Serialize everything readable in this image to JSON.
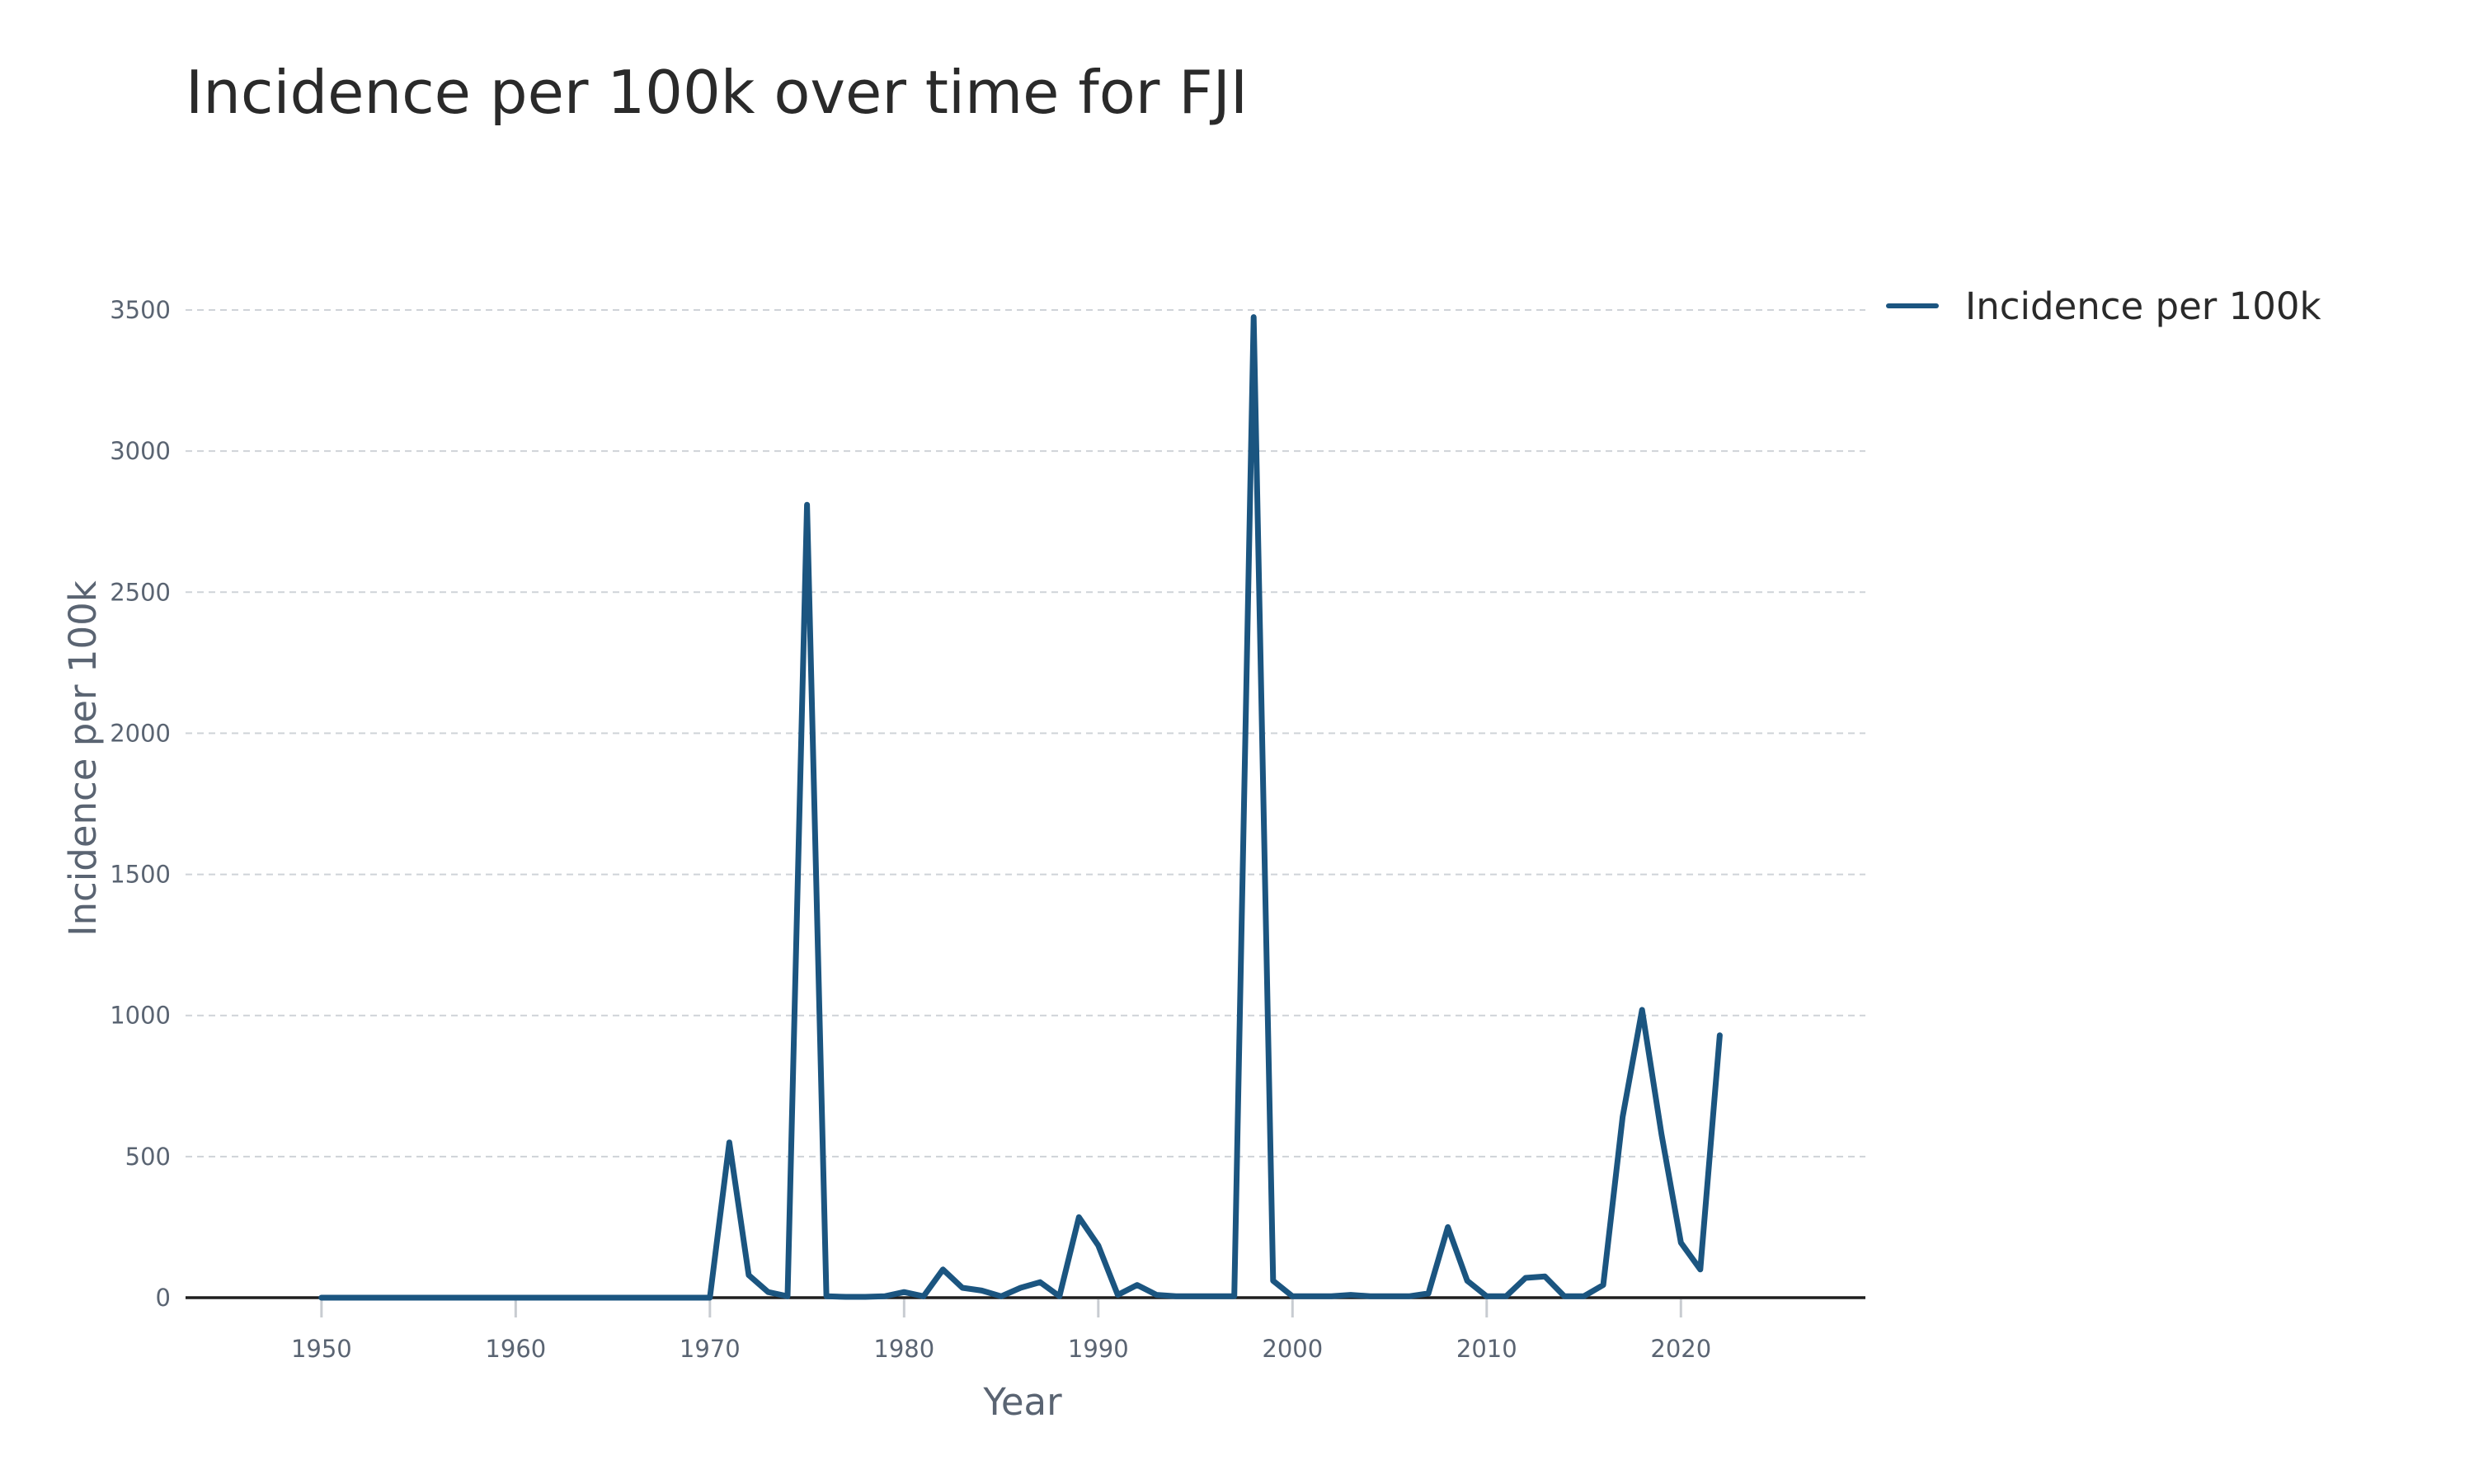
{
  "chart_data": {
    "type": "line",
    "title": "Incidence per 100k over time for FJI",
    "xlabel": "Year",
    "ylabel": "Incidence per 100k",
    "xlim": [
      1943,
      2029.5
    ],
    "ylim": [
      0,
      3500
    ],
    "xticks": [
      1950,
      1960,
      1970,
      1980,
      1990,
      2000,
      2010,
      2020
    ],
    "yticks": [
      0,
      500,
      1000,
      1500,
      2000,
      2500,
      3000,
      3500
    ],
    "grid": true,
    "legend_position": "top-right",
    "series": [
      {
        "name": "Incidence per 100k",
        "color": "#1b5580",
        "x": [
          1950,
          1951,
          1952,
          1953,
          1954,
          1955,
          1956,
          1957,
          1958,
          1959,
          1960,
          1961,
          1962,
          1963,
          1964,
          1965,
          1966,
          1967,
          1968,
          1969,
          1970,
          1971,
          1972,
          1973,
          1974,
          1975,
          1976,
          1977,
          1978,
          1979,
          1980,
          1981,
          1982,
          1983,
          1984,
          1985,
          1986,
          1987,
          1988,
          1989,
          1990,
          1991,
          1992,
          1993,
          1994,
          1995,
          1996,
          1997,
          1998,
          1999,
          2000,
          2001,
          2002,
          2003,
          2004,
          2005,
          2006,
          2007,
          2008,
          2009,
          2010,
          2011,
          2012,
          2013,
          2014,
          2015,
          2016,
          2017,
          2018,
          2019,
          2020,
          2021,
          2022
        ],
        "values": [
          0,
          0,
          0,
          0,
          0,
          0,
          0,
          0,
          0,
          0,
          0,
          0,
          0,
          0,
          0,
          0,
          0,
          0,
          0,
          0,
          0,
          550,
          80,
          20,
          5,
          2810,
          5,
          3,
          3,
          5,
          20,
          5,
          100,
          35,
          25,
          5,
          35,
          55,
          5,
          285,
          185,
          10,
          45,
          10,
          5,
          5,
          5,
          5,
          3475,
          60,
          5,
          5,
          5,
          10,
          5,
          5,
          5,
          15,
          250,
          60,
          5,
          5,
          70,
          75,
          5,
          5,
          45,
          640,
          1020,
          580,
          195,
          100,
          930
        ]
      }
    ]
  }
}
